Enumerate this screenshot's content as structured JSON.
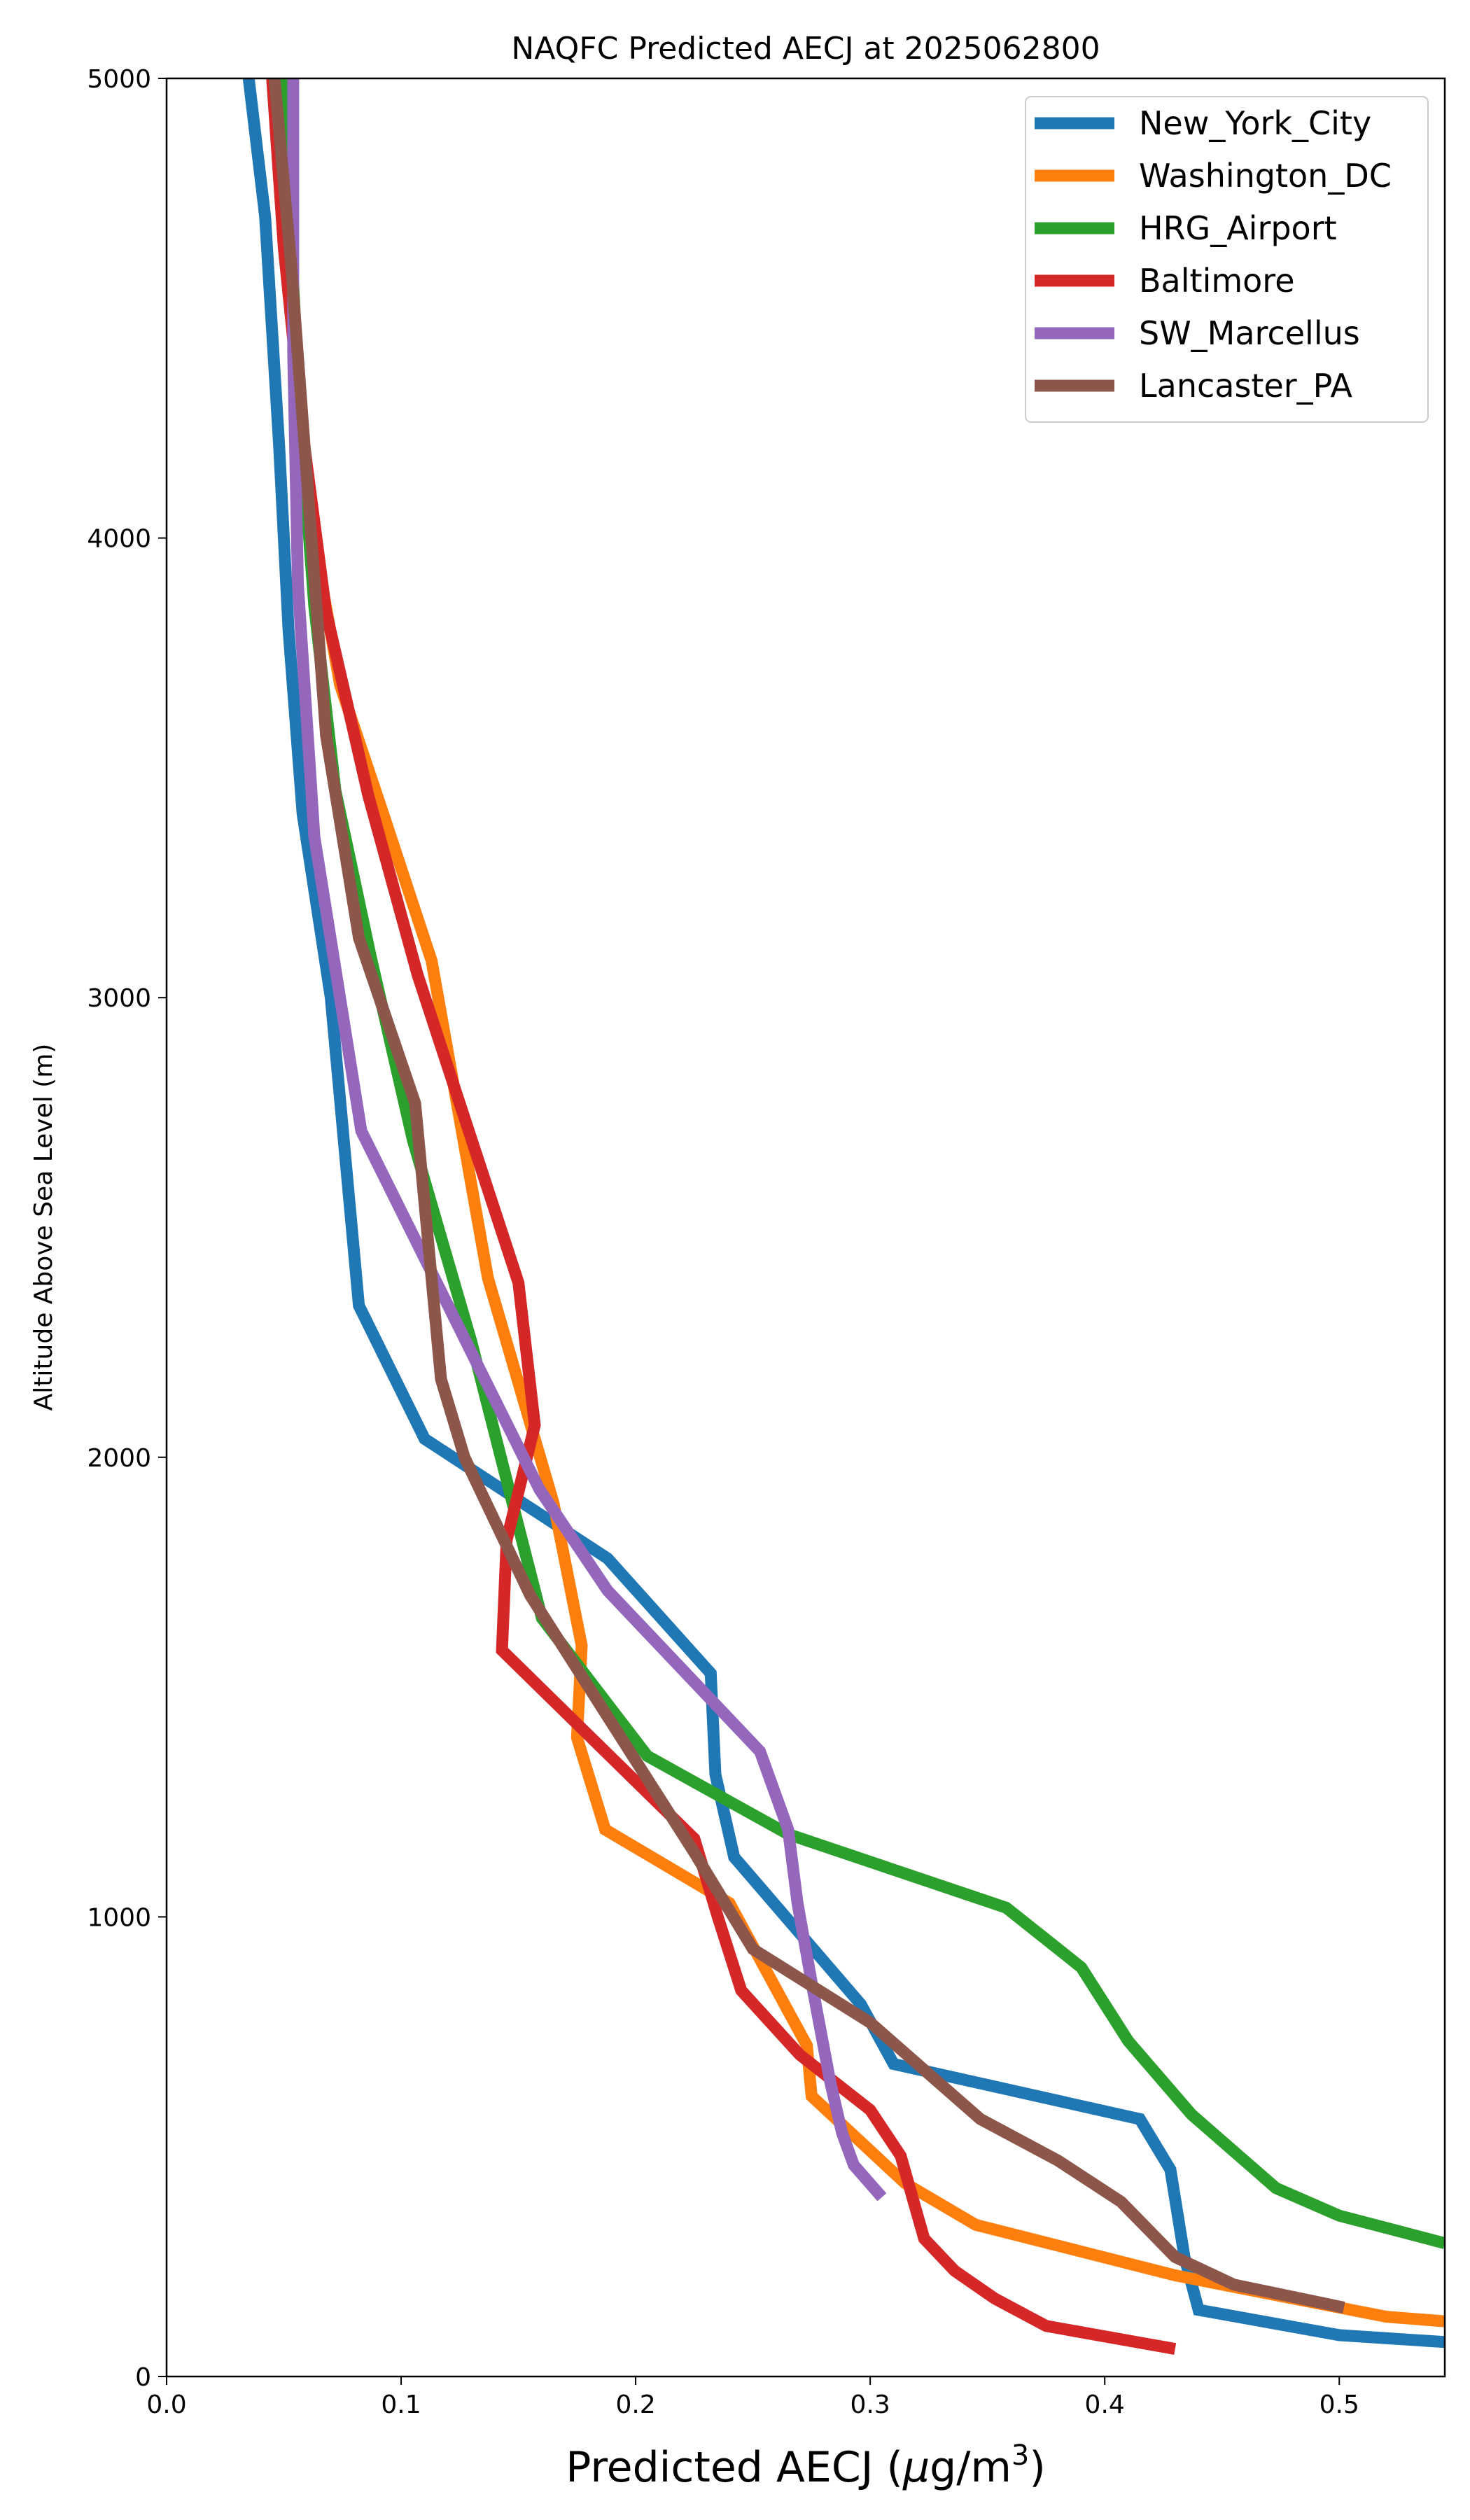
{
  "chart_data": {
    "type": "line",
    "title": "NAQFC Predicted AECJ at 2025062800",
    "xlabel_main": "Predicted AECJ (",
    "xlabel_mu": "μ",
    "xlabel_unit": "g/m",
    "xlabel_sup": "3",
    "xlabel_close": ")",
    "ylabel": "Altitude Above Sea Level (m)",
    "xlim": [
      0.0,
      0.545
    ],
    "ylim": [
      0,
      5000
    ],
    "xticks": [
      0.0,
      0.1,
      0.2,
      0.3,
      0.4,
      0.5
    ],
    "xtick_labels": [
      "0.0",
      "0.1",
      "0.2",
      "0.3",
      "0.4",
      "0.5"
    ],
    "yticks": [
      0,
      1000,
      2000,
      3000,
      4000,
      5000
    ],
    "ytick_labels": [
      "0",
      "1000",
      "2000",
      "3000",
      "4000",
      "5000"
    ],
    "legend_position": "top-right",
    "grid": false,
    "series": [
      {
        "name": "New_York_City",
        "color": "#1f77b4",
        "points": [
          [
            0.545,
            75
          ],
          [
            0.5,
            90
          ],
          [
            0.44,
            145
          ],
          [
            0.434,
            260
          ],
          [
            0.428,
            450
          ],
          [
            0.415,
            560
          ],
          [
            0.31,
            680
          ],
          [
            0.296,
            810
          ],
          [
            0.242,
            1130
          ],
          [
            0.234,
            1310
          ],
          [
            0.232,
            1530
          ],
          [
            0.188,
            1780
          ],
          [
            0.11,
            2040
          ],
          [
            0.082,
            2330
          ],
          [
            0.07,
            3000
          ],
          [
            0.058,
            3400
          ],
          [
            0.052,
            3800
          ],
          [
            0.048,
            4200
          ],
          [
            0.042,
            4700
          ],
          [
            0.035,
            5000
          ]
        ]
      },
      {
        "name": "Washington_DC",
        "color": "#ff7f0e",
        "points": [
          [
            0.545,
            120
          ],
          [
            0.52,
            130
          ],
          [
            0.43,
            220
          ],
          [
            0.345,
            330
          ],
          [
            0.315,
            420
          ],
          [
            0.275,
            610
          ],
          [
            0.273,
            720
          ],
          [
            0.24,
            1030
          ],
          [
            0.187,
            1190
          ],
          [
            0.175,
            1390
          ],
          [
            0.177,
            1590
          ],
          [
            0.165,
            1900
          ],
          [
            0.137,
            2390
          ],
          [
            0.113,
            3080
          ],
          [
            0.093,
            3390
          ],
          [
            0.074,
            3680
          ],
          [
            0.063,
            3990
          ],
          [
            0.055,
            4390
          ],
          [
            0.05,
            4790
          ],
          [
            0.048,
            5000
          ]
        ]
      },
      {
        "name": "HRG_Airport",
        "color": "#2ca02c",
        "points": [
          [
            0.545,
            290
          ],
          [
            0.5,
            350
          ],
          [
            0.473,
            410
          ],
          [
            0.437,
            570
          ],
          [
            0.41,
            730
          ],
          [
            0.39,
            890
          ],
          [
            0.358,
            1020
          ],
          [
            0.265,
            1180
          ],
          [
            0.205,
            1350
          ],
          [
            0.16,
            1650
          ],
          [
            0.13,
            2250
          ],
          [
            0.105,
            2690
          ],
          [
            0.087,
            3090
          ],
          [
            0.072,
            3450
          ],
          [
            0.063,
            3850
          ],
          [
            0.057,
            4250
          ],
          [
            0.053,
            4650
          ],
          [
            0.05,
            5000
          ]
        ]
      },
      {
        "name": "Baltimore",
        "color": "#d62728",
        "points": [
          [
            0.43,
            60
          ],
          [
            0.375,
            110
          ],
          [
            0.353,
            170
          ],
          [
            0.336,
            230
          ],
          [
            0.323,
            300
          ],
          [
            0.318,
            390
          ],
          [
            0.313,
            480
          ],
          [
            0.3,
            580
          ],
          [
            0.27,
            700
          ],
          [
            0.245,
            840
          ],
          [
            0.235,
            1000
          ],
          [
            0.225,
            1170
          ],
          [
            0.143,
            1580
          ],
          [
            0.145,
            1820
          ],
          [
            0.157,
            2070
          ],
          [
            0.15,
            2380
          ],
          [
            0.107,
            3050
          ],
          [
            0.086,
            3440
          ],
          [
            0.068,
            3840
          ],
          [
            0.058,
            4230
          ],
          [
            0.05,
            4630
          ],
          [
            0.045,
            5000
          ]
        ]
      },
      {
        "name": "SW_Marcellus",
        "color": "#9467bd",
        "points": [
          [
            0.305,
            390
          ],
          [
            0.293,
            460
          ],
          [
            0.288,
            530
          ],
          [
            0.283,
            640
          ],
          [
            0.276,
            830
          ],
          [
            0.269,
            1030
          ],
          [
            0.265,
            1190
          ],
          [
            0.253,
            1360
          ],
          [
            0.188,
            1710
          ],
          [
            0.159,
            1930
          ],
          [
            0.083,
            2710
          ],
          [
            0.063,
            3350
          ],
          [
            0.056,
            3900
          ],
          [
            0.054,
            4400
          ],
          [
            0.054,
            5000
          ]
        ]
      },
      {
        "name": "Lancaster_PA",
        "color": "#8c564b",
        "points": [
          [
            0.502,
            150
          ],
          [
            0.455,
            200
          ],
          [
            0.43,
            260
          ],
          [
            0.407,
            380
          ],
          [
            0.38,
            470
          ],
          [
            0.347,
            560
          ],
          [
            0.3,
            770
          ],
          [
            0.25,
            930
          ],
          [
            0.225,
            1140
          ],
          [
            0.185,
            1460
          ],
          [
            0.155,
            1700
          ],
          [
            0.127,
            2000
          ],
          [
            0.117,
            2170
          ],
          [
            0.106,
            2770
          ],
          [
            0.082,
            3130
          ],
          [
            0.068,
            3570
          ],
          [
            0.06,
            4120
          ],
          [
            0.053,
            4600
          ],
          [
            0.046,
            5000
          ]
        ]
      }
    ]
  }
}
